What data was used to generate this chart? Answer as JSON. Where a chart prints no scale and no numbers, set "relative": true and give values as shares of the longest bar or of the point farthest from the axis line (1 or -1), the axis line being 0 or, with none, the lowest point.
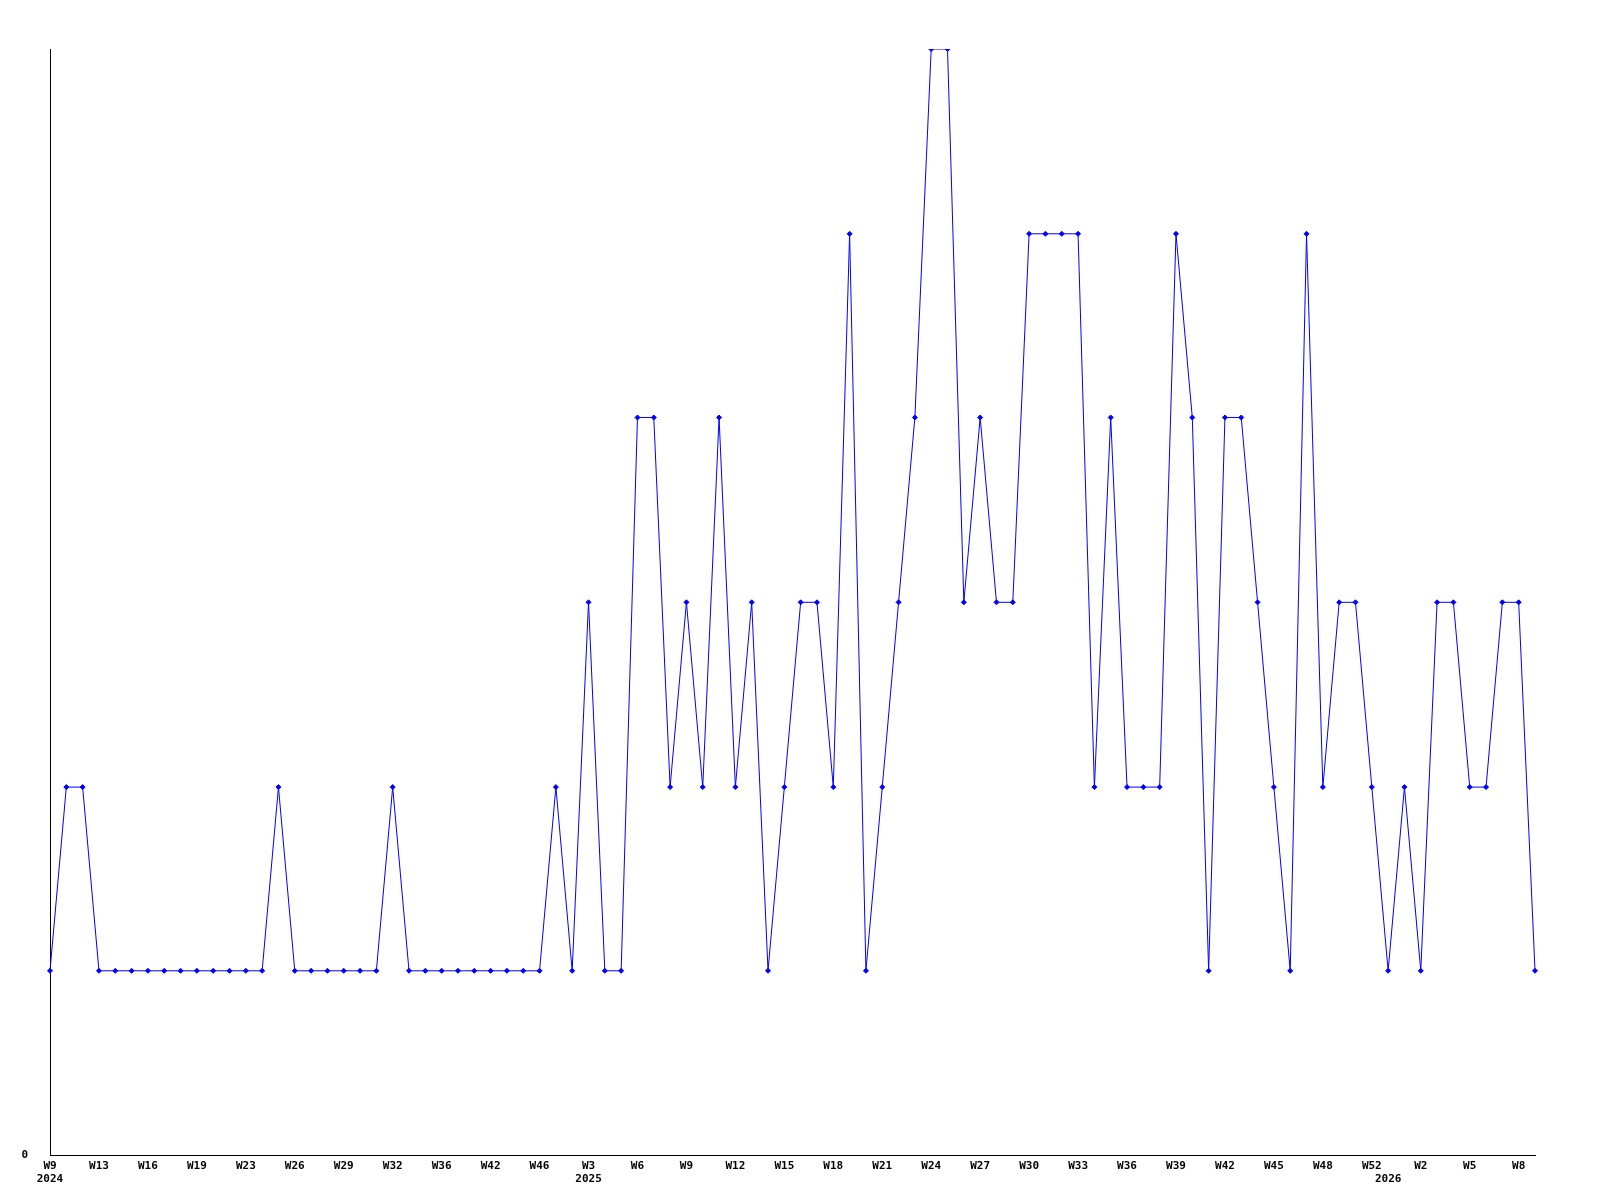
{
  "chart_data": {
    "type": "line",
    "relative": true,
    "color": "#0000ff",
    "marker": "diamond",
    "grid": false,
    "legend": false,
    "annotations": [
      "0"
    ],
    "categories": [
      "W9\n2024",
      null,
      null,
      "W13",
      null,
      null,
      "W16",
      null,
      null,
      "W19",
      null,
      null,
      "W23",
      null,
      null,
      "W26",
      null,
      null,
      "W29",
      null,
      null,
      "W32",
      null,
      null,
      "W36",
      null,
      null,
      "W42",
      null,
      null,
      "W46",
      null,
      null,
      "W3\n2025",
      null,
      null,
      "W6",
      null,
      null,
      "W9",
      null,
      null,
      "W12",
      null,
      null,
      "W15",
      null,
      null,
      "W18",
      null,
      null,
      "W21",
      null,
      null,
      "W24",
      null,
      null,
      "W27",
      null,
      null,
      "W30",
      null,
      null,
      "W33",
      null,
      null,
      "W36",
      null,
      null,
      "W39",
      null,
      null,
      "W42",
      null,
      null,
      "W45",
      null,
      null,
      "W48",
      null,
      null,
      "W52",
      "\n2026",
      null,
      "W2",
      null,
      null,
      "W5",
      null,
      null,
      "W8",
      null
    ],
    "values": [
      0.167,
      0.333,
      0.333,
      0.167,
      0.167,
      0.167,
      0.167,
      0.167,
      0.167,
      0.167,
      0.167,
      0.167,
      0.167,
      0.167,
      0.333,
      0.167,
      0.167,
      0.167,
      0.167,
      0.167,
      0.167,
      0.333,
      0.167,
      0.167,
      0.167,
      0.167,
      0.167,
      0.167,
      0.167,
      0.167,
      0.167,
      0.333,
      0.167,
      0.5,
      0.167,
      0.167,
      0.667,
      0.667,
      0.333,
      0.5,
      0.333,
      0.667,
      0.333,
      0.5,
      0.167,
      0.333,
      0.5,
      0.5,
      0.333,
      0.833,
      0.167,
      0.333,
      0.5,
      0.667,
      1,
      1,
      0.5,
      0.667,
      0.5,
      0.5,
      0.833,
      0.833,
      0.833,
      0.833,
      0.333,
      0.667,
      0.333,
      0.333,
      0.333,
      0.833,
      0.667,
      0.167,
      0.667,
      0.667,
      0.5,
      0.333,
      0.167,
      0.833,
      0.333,
      0.5,
      0.5,
      0.333,
      0.167,
      0.333,
      0.167,
      0.5,
      0.5,
      0.333,
      0.333,
      0.5,
      0.5,
      0.167
    ]
  }
}
